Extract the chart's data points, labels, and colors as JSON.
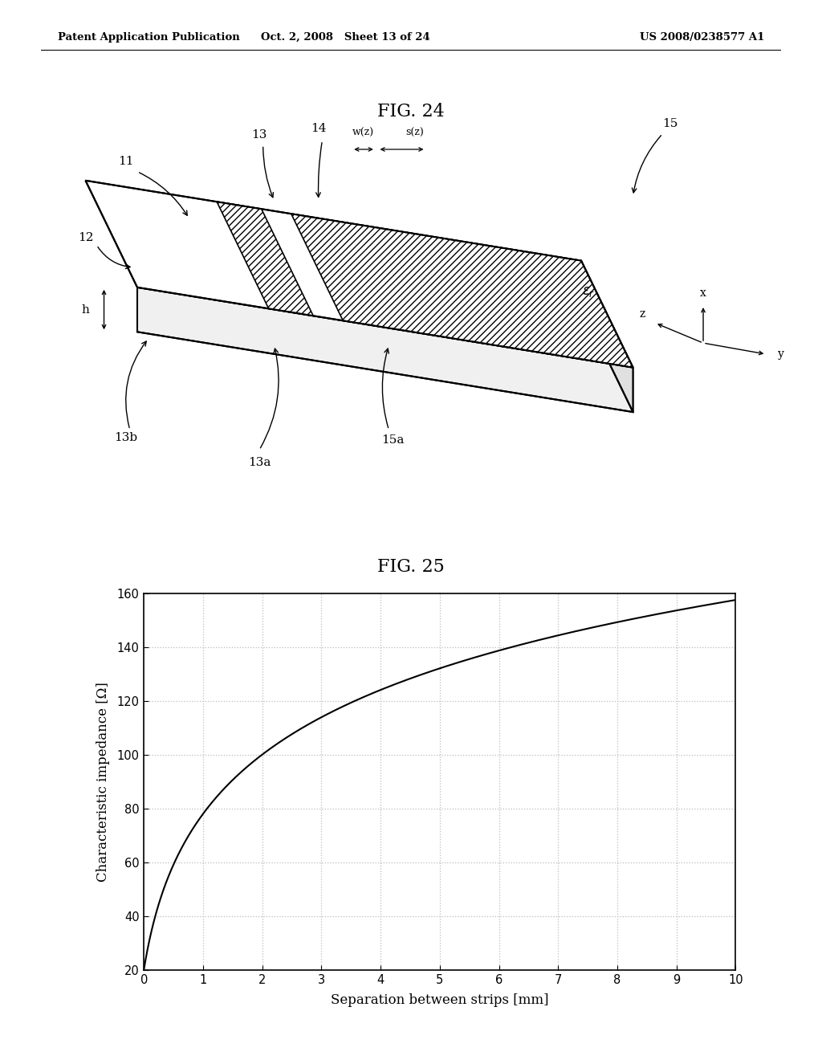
{
  "header_left": "Patent Application Publication",
  "header_mid": "Oct. 2, 2008   Sheet 13 of 24",
  "header_right": "US 2008/0238577 A1",
  "fig24_title": "FIG. 24",
  "fig25_title": "FIG. 25",
  "xlabel": "Separation between strips [mm]",
  "ylabel": "Characteristic impedance [Ω]",
  "xlim": [
    0,
    10
  ],
  "ylim": [
    20,
    160
  ],
  "xticks": [
    0,
    1,
    2,
    3,
    4,
    5,
    6,
    7,
    8,
    9,
    10
  ],
  "yticks": [
    20,
    40,
    60,
    80,
    100,
    120,
    140,
    160
  ],
  "bg_color": "#ffffff",
  "line_color": "#000000",
  "grid_color": "#bbbbbb"
}
